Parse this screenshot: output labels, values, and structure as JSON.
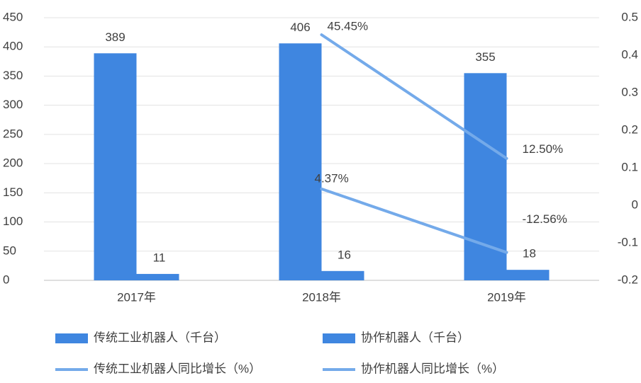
{
  "chart_data": {
    "type": "combo",
    "categories": [
      "2017年",
      "2018年",
      "2019年"
    ],
    "series": [
      {
        "name": "传统工业机器人（千台）",
        "type": "bar",
        "color": "#3f86e0",
        "values": [
          389,
          406,
          355
        ]
      },
      {
        "name": "协作机器人（千台）",
        "type": "bar",
        "color": "#3f86e0",
        "values": [
          11,
          16,
          18
        ]
      },
      {
        "name": "传统工业机器人同比增长（%）",
        "type": "line",
        "axis": "y2",
        "color": "#74aaea",
        "values": [
          null,
          0.4545,
          0.125
        ],
        "value_labels": [
          null,
          "45.45%",
          "12.50%"
        ]
      },
      {
        "name": "协作机器人同比增长（%）",
        "type": "line",
        "axis": "y2",
        "color": "#74aaea",
        "values": [
          null,
          0.0437,
          -0.1256
        ],
        "value_labels": [
          null,
          "4.37%",
          "-12.56%"
        ]
      }
    ],
    "ylim": [
      0,
      450
    ],
    "yticks": [
      0,
      50,
      100,
      150,
      200,
      250,
      300,
      350,
      400,
      450
    ],
    "y2lim": [
      -0.2,
      0.5
    ],
    "y2ticks": [
      -0.2,
      -0.1,
      0,
      0.1,
      0.2,
      0.3,
      0.4,
      0.5
    ],
    "grid": true
  }
}
